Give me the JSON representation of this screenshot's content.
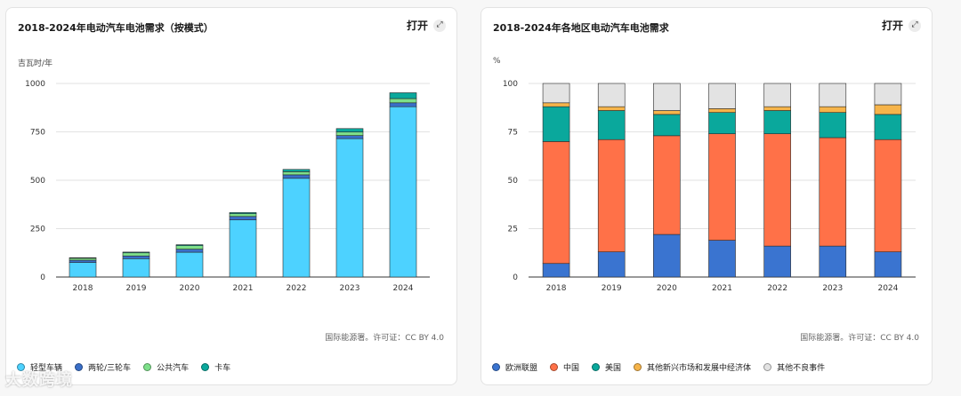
{
  "left_card": {
    "title": "2018-2024年电动汽车电池需求（按模式）",
    "open_label": "打开",
    "unit_label": "吉瓦时/年",
    "source": "国际能源署。许可证：CC BY 4.0"
  },
  "right_card": {
    "title": "2018-2024年各地区电动汽车电池需求",
    "open_label": "打开",
    "unit_label": "%",
    "source": "国际能源署。许可证：CC BY 4.0"
  },
  "watermark": "大数跨境",
  "chart_data": [
    {
      "type": "bar",
      "stacked": true,
      "title": "2018-2024年电动汽车电池需求（按模式）",
      "ylabel": "吉瓦时/年",
      "ylim": [
        0,
        1000
      ],
      "yticks": [
        0,
        250,
        500,
        750,
        1000
      ],
      "categories": [
        "2018",
        "2019",
        "2020",
        "2021",
        "2022",
        "2023",
        "2024"
      ],
      "series": [
        {
          "name": "轻型车辆",
          "color": "#4dd2ff",
          "values": [
            75,
            95,
            128,
            295,
            510,
            715,
            880
          ]
        },
        {
          "name": "两轮/三轮车",
          "color": "#3a6fc8",
          "values": [
            12,
            14,
            16,
            18,
            18,
            16,
            20
          ]
        },
        {
          "name": "公共汽车",
          "color": "#7ee08a",
          "values": [
            10,
            16,
            18,
            14,
            16,
            18,
            22
          ]
        },
        {
          "name": "卡车",
          "color": "#0aa89c",
          "values": [
            3,
            4,
            5,
            6,
            12,
            18,
            30
          ]
        }
      ]
    },
    {
      "type": "bar",
      "stacked": true,
      "title": "2018-2024年各地区电动汽车电池需求",
      "ylabel": "%",
      "ylim": [
        0,
        100
      ],
      "yticks": [
        0,
        25,
        50,
        75,
        100
      ],
      "categories": [
        "2018",
        "2019",
        "2020",
        "2021",
        "2022",
        "2023",
        "2024"
      ],
      "series": [
        {
          "name": "欧洲联盟",
          "color": "#3a74d0",
          "values": [
            7,
            13,
            22,
            19,
            16,
            16,
            13
          ]
        },
        {
          "name": "中国",
          "color": "#ff7148",
          "values": [
            63,
            58,
            51,
            55,
            58,
            56,
            58
          ]
        },
        {
          "name": "美国",
          "color": "#0aa89c",
          "values": [
            18,
            15,
            11,
            11,
            12,
            13,
            13
          ]
        },
        {
          "name": "其他新兴市场和发展中经济体",
          "color": "#f6b44a",
          "values": [
            2,
            2,
            2,
            2,
            2,
            3,
            5
          ]
        },
        {
          "name": "其他不良事件",
          "color": "#e3e3e3",
          "values": [
            10,
            12,
            14,
            13,
            12,
            12,
            11
          ]
        }
      ]
    }
  ]
}
